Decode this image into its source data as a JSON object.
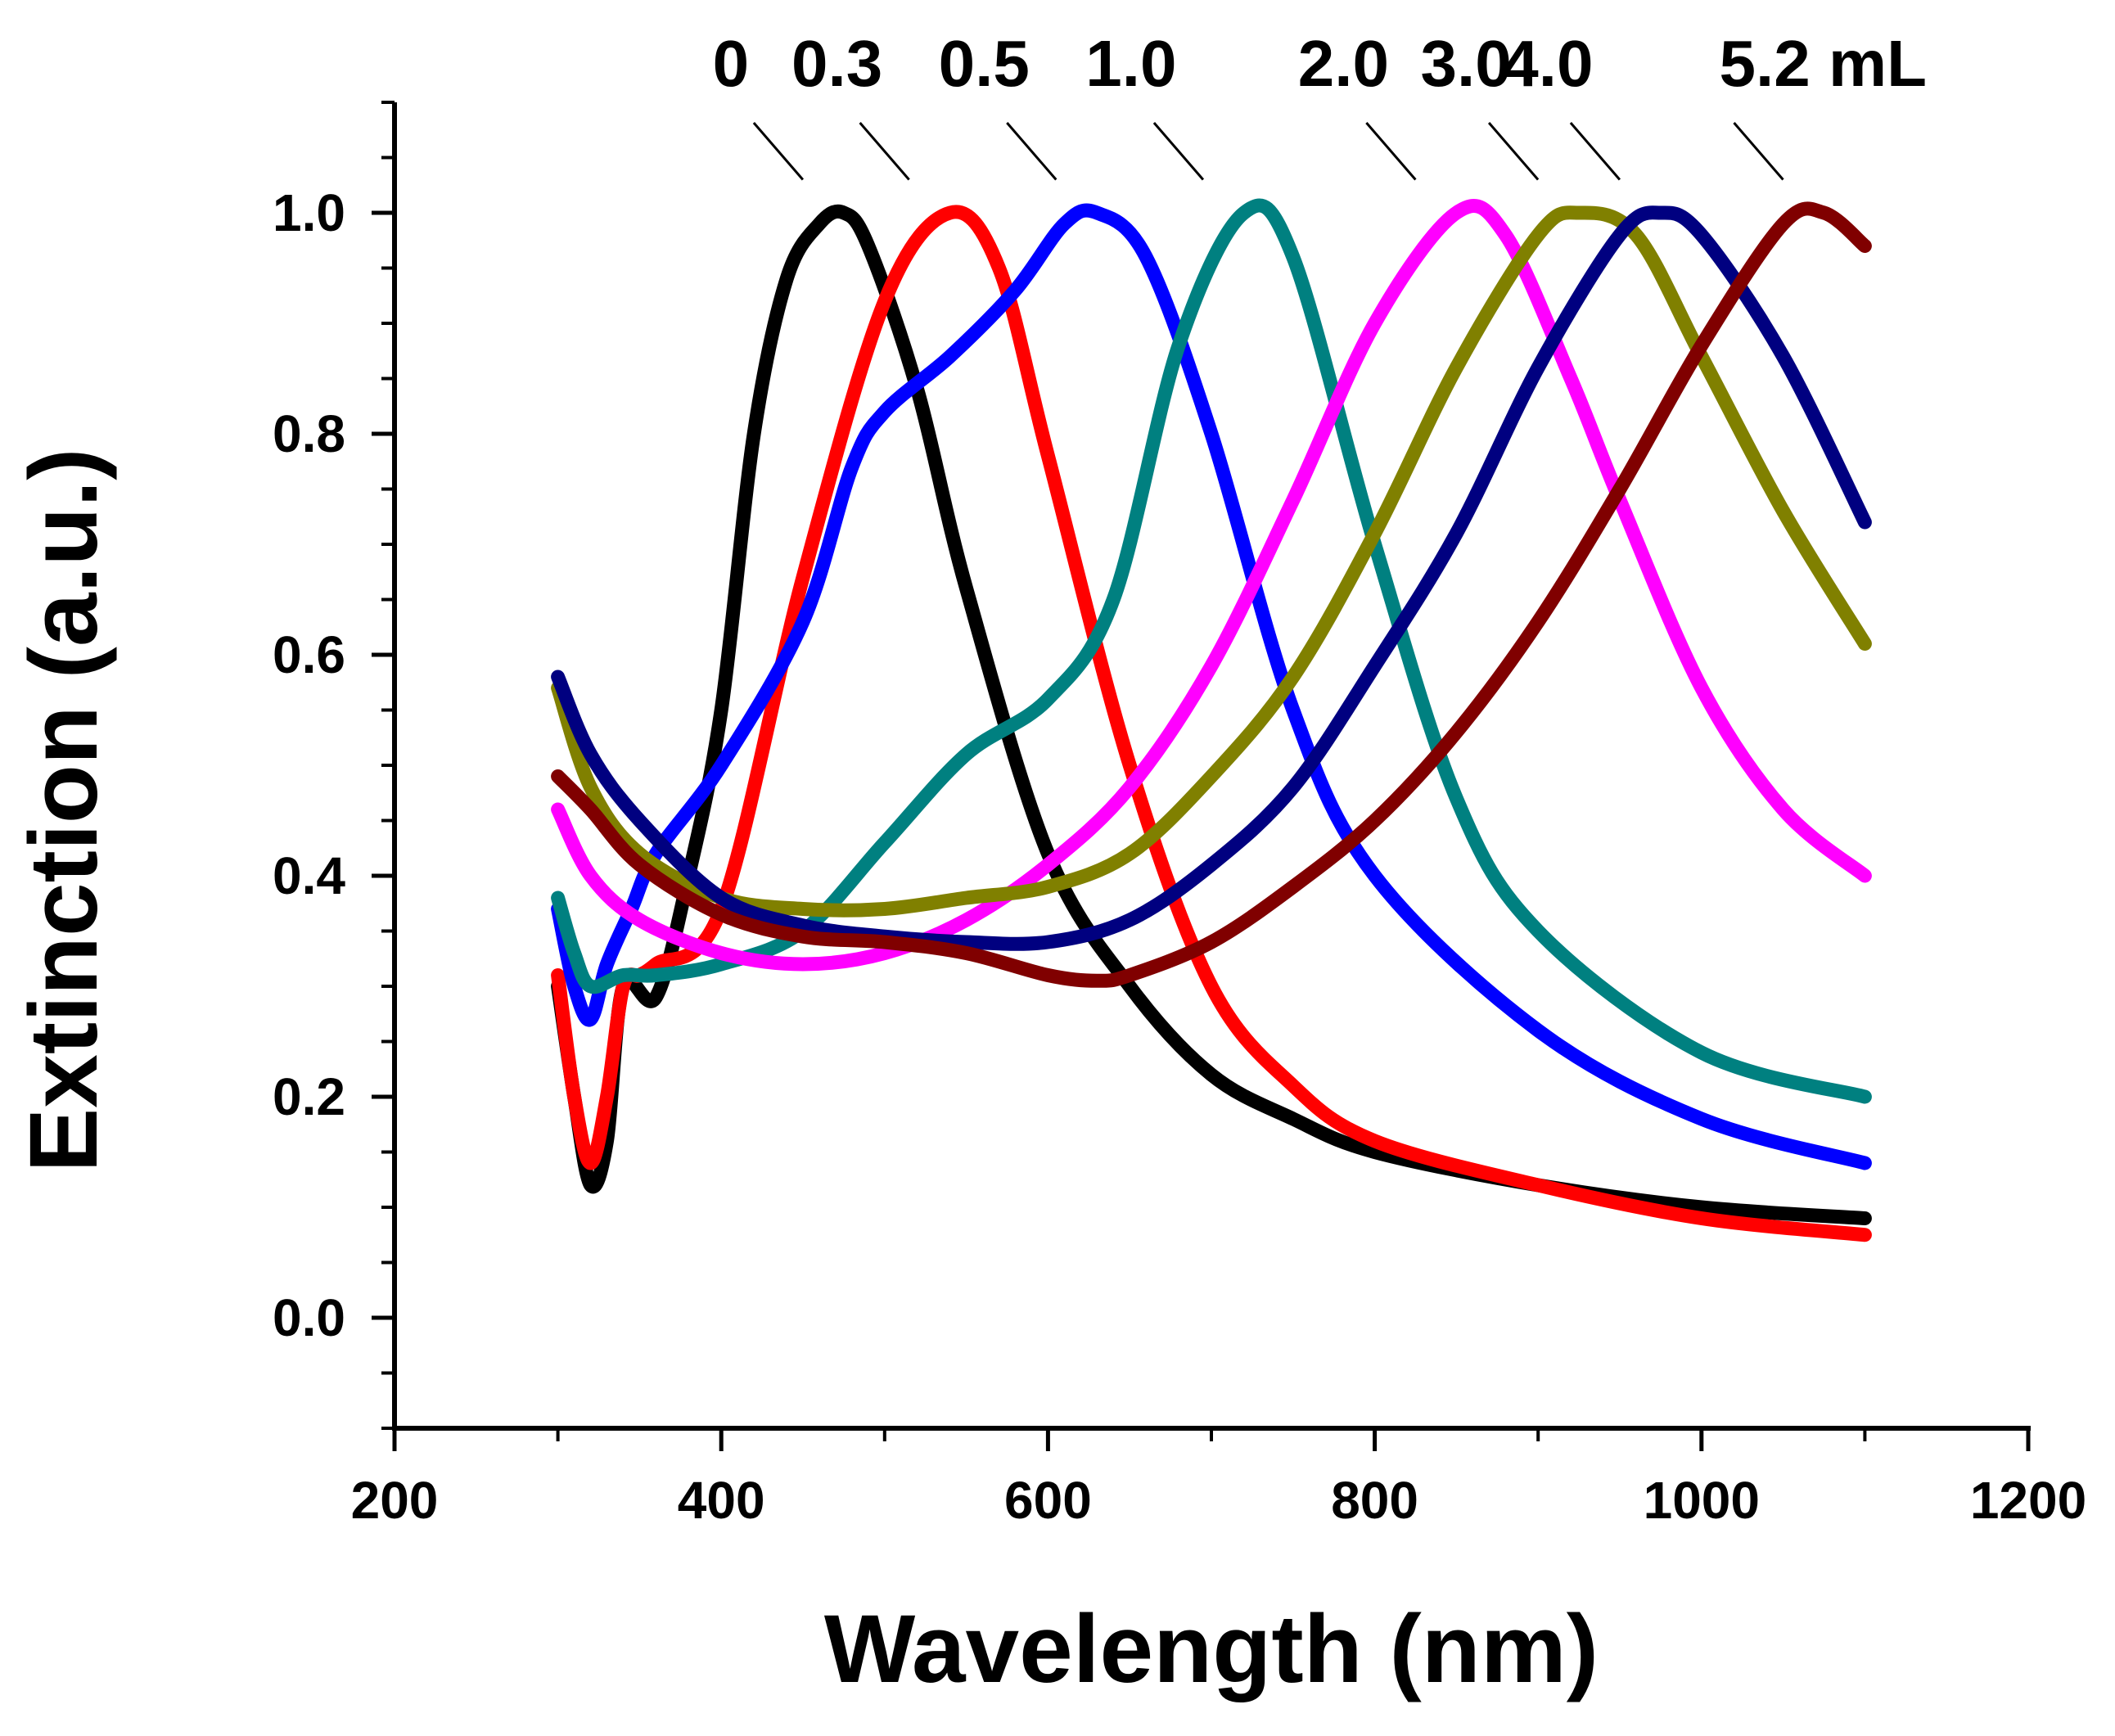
{
  "chart_data": {
    "type": "line",
    "title": "",
    "xlabel": "Wavelength (nm)",
    "ylabel": "Extinction (a.u.)",
    "xlim": [
      200,
      1200
    ],
    "ylim": [
      -0.1,
      1.1
    ],
    "x_ticks": [
      200,
      400,
      600,
      800,
      1000,
      1200
    ],
    "x_tick_labels": [
      "200",
      "400",
      "600",
      "800",
      "1000",
      "1200"
    ],
    "y_ticks": [
      0.0,
      0.2,
      0.4,
      0.6,
      0.8,
      1.0
    ],
    "y_tick_labels": [
      "0.0",
      "0.2",
      "0.4",
      "0.6",
      "0.8",
      "1.0"
    ],
    "grid": false,
    "legend": "none",
    "peak_annotations": [
      {
        "text": "0",
        "series": "0 mL"
      },
      {
        "text": "0.3",
        "series": "0.3 mL"
      },
      {
        "text": "0.5",
        "series": "0.5 mL"
      },
      {
        "text": "1.0",
        "series": "1.0 mL"
      },
      {
        "text": "2.0",
        "series": "2.0 mL"
      },
      {
        "text": "3.0",
        "series": "3.0 mL"
      },
      {
        "text": "4.0",
        "series": "4.0 mL"
      },
      {
        "text": "5.2 mL",
        "series": "5.2 mL"
      }
    ],
    "series": [
      {
        "name": "0 mL",
        "color": "#000000",
        "x": [
          300,
          310,
          320,
          330,
          340,
          360,
          380,
          400,
          420,
          440,
          460,
          475,
          490,
          520,
          550,
          600,
          650,
          700,
          750,
          800,
          900,
          1000,
          1100
        ],
        "y": [
          0.3,
          0.2,
          0.12,
          0.16,
          0.3,
          0.29,
          0.4,
          0.55,
          0.8,
          0.94,
          0.99,
          1.0,
          0.97,
          0.84,
          0.66,
          0.42,
          0.3,
          0.22,
          0.18,
          0.15,
          0.12,
          0.1,
          0.09
        ]
      },
      {
        "name": "0.3 mL",
        "color": "#ff0000",
        "x": [
          300,
          310,
          320,
          330,
          340,
          350,
          360,
          400,
          450,
          500,
          540,
          570,
          600,
          650,
          700,
          750,
          800,
          900,
          1000,
          1100
        ],
        "y": [
          0.31,
          0.2,
          0.14,
          0.2,
          0.3,
          0.31,
          0.32,
          0.37,
          0.67,
          0.92,
          1.0,
          0.95,
          0.78,
          0.5,
          0.3,
          0.21,
          0.16,
          0.12,
          0.09,
          0.075
        ]
      },
      {
        "name": "0.5 mL",
        "color": "#0000ff",
        "x": [
          300,
          310,
          320,
          330,
          345,
          360,
          400,
          450,
          480,
          500,
          540,
          580,
          610,
          630,
          660,
          700,
          750,
          800,
          900,
          1000,
          1100
        ],
        "y": [
          0.37,
          0.3,
          0.27,
          0.32,
          0.37,
          0.42,
          0.5,
          0.63,
          0.77,
          0.82,
          0.87,
          0.93,
          0.99,
          1.0,
          0.96,
          0.8,
          0.55,
          0.4,
          0.26,
          0.18,
          0.14
        ]
      },
      {
        "name": "1.0 mL",
        "color": "#008080",
        "x": [
          300,
          310,
          320,
          340,
          360,
          400,
          450,
          500,
          550,
          600,
          640,
          680,
          720,
          750,
          800,
          850,
          900,
          1000,
          1100
        ],
        "y": [
          0.38,
          0.33,
          0.3,
          0.31,
          0.31,
          0.32,
          0.35,
          0.43,
          0.51,
          0.56,
          0.65,
          0.88,
          1.0,
          0.96,
          0.7,
          0.47,
          0.35,
          0.24,
          0.2
        ]
      },
      {
        "name": "2.0 mL",
        "color": "#ff00ff",
        "x": [
          300,
          320,
          350,
          400,
          450,
          500,
          550,
          600,
          650,
          700,
          750,
          800,
          850,
          880,
          920,
          950,
          1000,
          1050,
          1100
        ],
        "y": [
          0.46,
          0.4,
          0.36,
          0.33,
          0.32,
          0.33,
          0.36,
          0.41,
          0.48,
          0.59,
          0.74,
          0.9,
          1.0,
          0.98,
          0.85,
          0.74,
          0.57,
          0.46,
          0.4
        ]
      },
      {
        "name": "3.0 mL",
        "color": "#808000",
        "x": [
          300,
          320,
          350,
          400,
          450,
          500,
          550,
          600,
          650,
          700,
          750,
          800,
          850,
          900,
          925,
          960,
          1000,
          1050,
          1100
        ],
        "y": [
          0.57,
          0.48,
          0.42,
          0.38,
          0.37,
          0.37,
          0.38,
          0.39,
          0.42,
          0.49,
          0.58,
          0.71,
          0.86,
          0.98,
          1.0,
          0.98,
          0.87,
          0.73,
          0.61
        ]
      },
      {
        "name": "4.0 mL",
        "color": "#000080",
        "x": [
          300,
          320,
          350,
          400,
          450,
          500,
          550,
          600,
          650,
          700,
          750,
          800,
          850,
          900,
          950,
          975,
          1000,
          1050,
          1100
        ],
        "y": [
          0.58,
          0.51,
          0.45,
          0.38,
          0.355,
          0.345,
          0.34,
          0.34,
          0.36,
          0.41,
          0.48,
          0.59,
          0.71,
          0.86,
          0.98,
          1.0,
          0.98,
          0.87,
          0.72
        ]
      },
      {
        "name": "5.2 mL",
        "color": "#800000",
        "x": [
          300,
          320,
          350,
          400,
          450,
          500,
          550,
          600,
          630,
          650,
          700,
          750,
          800,
          850,
          900,
          950,
          1000,
          1050,
          1075,
          1100
        ],
        "y": [
          0.49,
          0.46,
          0.41,
          0.365,
          0.345,
          0.34,
          0.33,
          0.31,
          0.305,
          0.31,
          0.34,
          0.39,
          0.45,
          0.53,
          0.63,
          0.75,
          0.88,
          0.99,
          1.0,
          0.97
        ]
      }
    ]
  }
}
